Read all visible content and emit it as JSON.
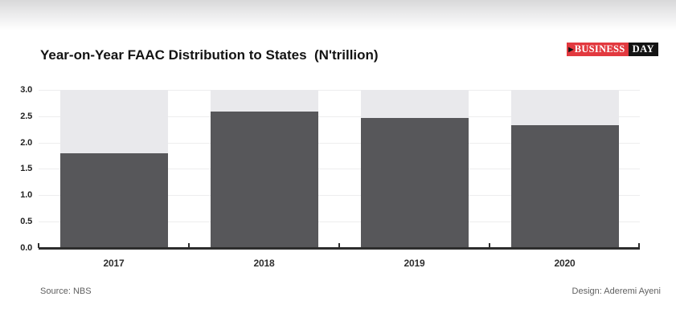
{
  "title": "Year-on-Year FAAC Distribution to States  (N'trillion)",
  "logo": {
    "arrow_icon": "▶",
    "word1": "BUSINESS",
    "word2": "DAY",
    "red": "#e2393f",
    "black": "#141414"
  },
  "chart_data": {
    "type": "bar",
    "title": "Year-on-Year FAAC Distribution to States  (N'trillion)",
    "categories": [
      "2017",
      "2018",
      "2019",
      "2020"
    ],
    "values": [
      1.79,
      2.58,
      2.47,
      2.32
    ],
    "backdrop_to": 3.0,
    "ylim": [
      0,
      3.0
    ],
    "ytick_step": 0.5,
    "yticks": [
      "3.0",
      "2.5",
      "2.0",
      "1.5",
      "1.0",
      "0.5",
      "0.0"
    ],
    "grid": true,
    "legend": "none",
    "bar_color": "#57575a",
    "backdrop_color": "#e9e9ec",
    "baseline_color": "#2d2d2d"
  },
  "footer": {
    "source": "Source: NBS",
    "design": "Design: Aderemi Ayeni"
  }
}
